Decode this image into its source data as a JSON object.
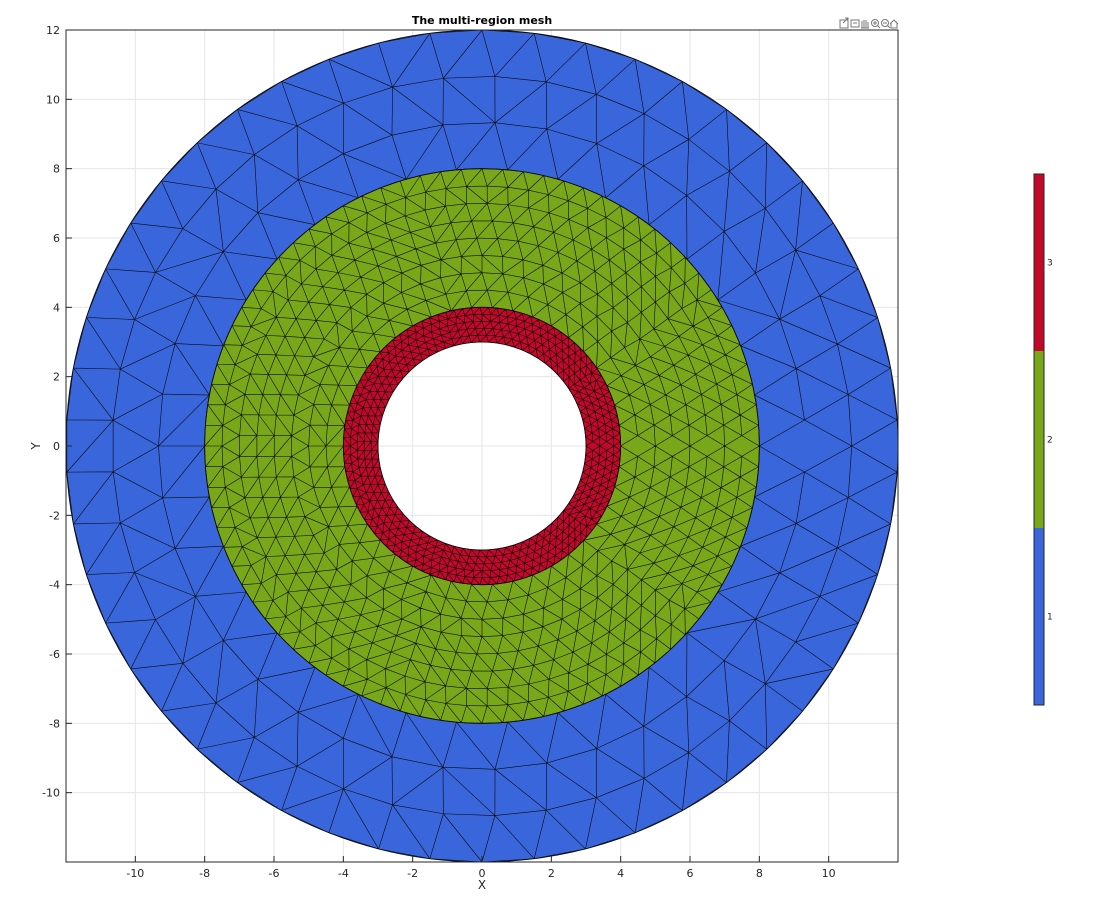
{
  "chart_data": {
    "type": "mesh",
    "title": "The multi-region mesh",
    "xlabel": "X",
    "ylabel": "Y",
    "xlim": [
      -12,
      12
    ],
    "ylim": [
      -12,
      12
    ],
    "xticks": [
      -10,
      -8,
      -6,
      -4,
      -2,
      0,
      2,
      4,
      6,
      8,
      10
    ],
    "yticks": [
      12,
      10,
      8,
      6,
      4,
      2,
      0,
      -2,
      -4,
      -6,
      -8,
      -10
    ],
    "grid": true,
    "regions": [
      {
        "name": "1",
        "inner_radius": 8,
        "outer_radius": 12,
        "color": "#3a66dc",
        "element_size": 1.5
      },
      {
        "name": "2",
        "inner_radius": 4,
        "outer_radius": 8,
        "color": "#78a81a",
        "element_size": 0.6
      },
      {
        "name": "3",
        "inner_radius": 3,
        "outer_radius": 4,
        "color": "#c3092a",
        "element_size": 0.25
      }
    ],
    "colorbar": {
      "ticks": [
        "1",
        "2",
        "3"
      ],
      "colors": [
        "#3a66dc",
        "#78a81a",
        "#c3092a"
      ],
      "placement": "right"
    }
  },
  "toolbar": {
    "icons": [
      "export-icon",
      "datatip-icon",
      "pan-icon",
      "zoom-in-icon",
      "zoom-out-icon",
      "home-icon"
    ]
  }
}
